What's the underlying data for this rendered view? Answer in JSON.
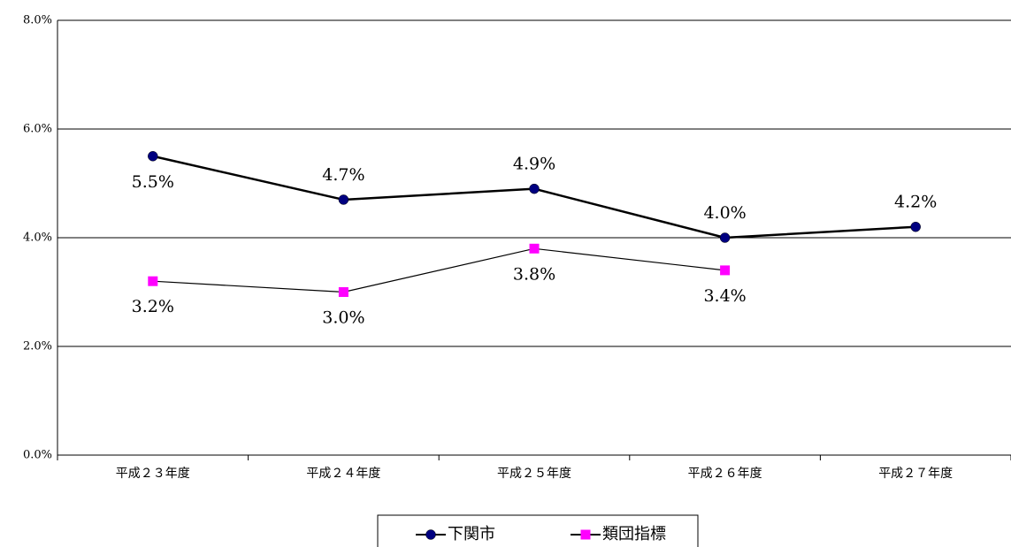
{
  "chart_data": {
    "type": "line",
    "categories": [
      "平成２３年度",
      "平成２４年度",
      "平成２５年度",
      "平成２６年度",
      "平成２７年度"
    ],
    "series": [
      {
        "name": "下関市",
        "color": "#000080",
        "marker": "circle",
        "values": [
          5.5,
          4.7,
          4.9,
          4.0,
          4.2
        ],
        "value_labels": [
          "5.5%",
          "4.7%",
          "4.9%",
          "4.0%",
          "4.2%"
        ]
      },
      {
        "name": "類団指標",
        "color": "#ff00ff",
        "marker": "square",
        "values": [
          3.2,
          3.0,
          3.8,
          3.4,
          null
        ],
        "value_labels": [
          "3.2%",
          "3.0%",
          "3.8%",
          "3.4%",
          null
        ]
      }
    ],
    "ylim": [
      0,
      8
    ],
    "yticks": [
      {
        "value": 0,
        "label": "0.0%"
      },
      {
        "value": 2,
        "label": "2.0%"
      },
      {
        "value": 4,
        "label": "4.0%"
      },
      {
        "value": 6,
        "label": "6.0%"
      },
      {
        "value": 8,
        "label": "8.0%"
      }
    ],
    "grid": true,
    "legend": "bottom"
  }
}
